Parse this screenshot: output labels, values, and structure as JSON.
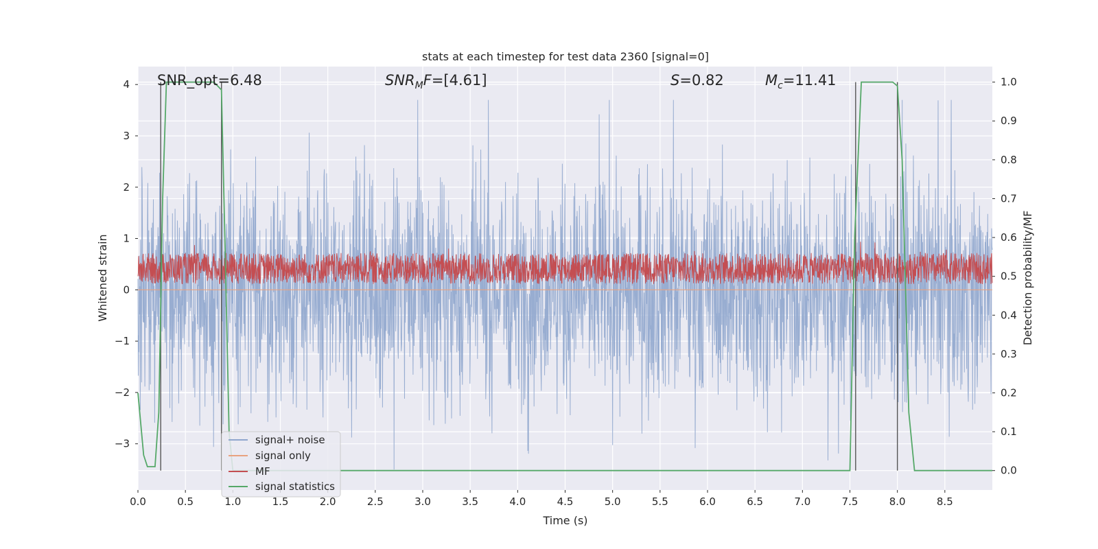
{
  "chart_data": {
    "type": "line",
    "title": "stats at each timestep for test data 2360 [signal=0]",
    "xlabel": "Time (s)",
    "ylabel_left": "Whitened strain",
    "ylabel_right": "Detection probability/MF",
    "xlim": [
      0.0,
      9.0
    ],
    "ylim_left": [
      -3.9,
      4.35
    ],
    "ylim_right": [
      -0.05,
      1.04
    ],
    "x_ticks": [
      "0.0",
      "0.5",
      "1.0",
      "1.5",
      "2.0",
      "2.5",
      "3.0",
      "3.5",
      "4.0",
      "4.5",
      "5.0",
      "5.5",
      "6.0",
      "6.5",
      "7.0",
      "7.5",
      "8.0",
      "8.5"
    ],
    "y_left_ticks": [
      "4",
      "3",
      "2",
      "1",
      "0",
      "−1",
      "−2",
      "−3"
    ],
    "y_right_ticks": [
      "1.0",
      "0.9",
      "0.8",
      "0.7",
      "0.6",
      "0.5",
      "0.4",
      "0.3",
      "0.2",
      "0.1",
      "0.0"
    ],
    "grid": true,
    "legend_position": "lower-left",
    "annotations": {
      "snr_opt": "SNR_opt=6.48",
      "snr_mf": "=[4.61]",
      "s": "=0.82",
      "mc": "=11.41"
    },
    "series": [
      {
        "name": "signal+ noise",
        "color": "#8fa6cd",
        "axis": "left",
        "note": "whitened noise, approx range -3.5 to 3.7"
      },
      {
        "name": "signal only",
        "color": "#e8a27f",
        "axis": "left",
        "values_constant": 0.0
      },
      {
        "name": "MF",
        "color": "#c44e52",
        "axis": "right",
        "note": "fluctuates ~0.47-0.57"
      },
      {
        "name": "signal statistics",
        "color": "#55a868",
        "axis": "right",
        "x": [
          0.0,
          0.06,
          0.1,
          0.18,
          0.22,
          0.26,
          0.3,
          0.5,
          0.8,
          0.88,
          0.92,
          0.96,
          1.0,
          7.45,
          7.5,
          7.55,
          7.62,
          7.95,
          8.0,
          8.05,
          8.12,
          8.18,
          8.3,
          9.0
        ],
        "y": [
          0.2,
          0.04,
          0.01,
          0.01,
          0.15,
          0.7,
          1.0,
          1.0,
          1.0,
          0.98,
          0.55,
          0.1,
          0.0,
          0.0,
          0.0,
          0.6,
          1.0,
          1.0,
          0.99,
          0.8,
          0.15,
          0.0,
          0.0,
          0.0
        ]
      }
    ],
    "vertical_markers_x": [
      0.24,
      0.88,
      7.56,
      8.0
    ]
  }
}
